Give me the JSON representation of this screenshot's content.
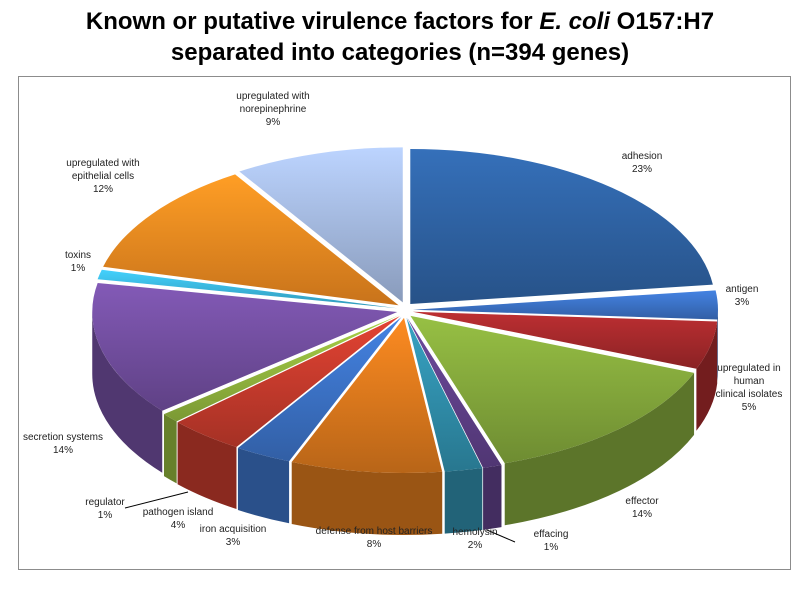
{
  "title": {
    "line1_a": "Known or putative virulence factors for ",
    "line1_em": "E. coli",
    "line1_b": " O157:H7",
    "line2": "separated into categories  (n=394 genes)"
  },
  "chart_data": {
    "type": "pie",
    "title": "Known or putative virulence factors for E. coli O157:H7 separated into categories  (n=394 genes)",
    "three_d": true,
    "exploded": true,
    "start_angle_deg": 0,
    "direction": "clockwise",
    "slices": [
      {
        "name": "adhesion",
        "lines": [
          "adhesion"
        ],
        "pct": "23%",
        "value": 23,
        "color": "#2d5f9e"
      },
      {
        "name": "antigen",
        "lines": [
          "antigen"
        ],
        "pct": "3%",
        "value": 3,
        "color": "#3a6fc0"
      },
      {
        "name": "upregulated in human clinical isolates",
        "lines": [
          "upregulated in",
          "human",
          "clinical isolates"
        ],
        "pct": "5%",
        "value": 5,
        "color": "#a0282a"
      },
      {
        "name": "effector",
        "lines": [
          "effector"
        ],
        "pct": "14%",
        "value": 14,
        "color": "#80a33a"
      },
      {
        "name": "effacing",
        "lines": [
          "effacing"
        ],
        "pct": "1%",
        "value": 1,
        "color": "#5d3f86"
      },
      {
        "name": "hemolysin",
        "lines": [
          "hemolysin"
        ],
        "pct": "2%",
        "value": 2,
        "color": "#2f8aa6"
      },
      {
        "name": "defense from host barriers",
        "lines": [
          "defense from host barriers"
        ],
        "pct": "8%",
        "value": 8,
        "color": "#d6761c"
      },
      {
        "name": "iron acquisition",
        "lines": [
          "iron acquisition"
        ],
        "pct": "3%",
        "value": 3,
        "color": "#3a6fc0"
      },
      {
        "name": "pathogen island",
        "lines": [
          "pathogen island"
        ],
        "pct": "4%",
        "value": 4,
        "color": "#c0392b"
      },
      {
        "name": "regulator",
        "lines": [
          "regulator"
        ],
        "pct": "1%",
        "value": 1,
        "color": "#8fb23c"
      },
      {
        "name": "secretion systems",
        "lines": [
          "secretion systems"
        ],
        "pct": "14%",
        "value": 14,
        "color": "#6f4c9b"
      },
      {
        "name": "toxins",
        "lines": [
          "toxins"
        ],
        "pct": "1%",
        "value": 1,
        "color": "#39b1d6"
      },
      {
        "name": "upregulated with epithelial cells",
        "lines": [
          "upregulated with",
          "epithelial cells"
        ],
        "pct": "12%",
        "value": 12,
        "color": "#e8861f"
      },
      {
        "name": "upregulated with norepinephrine",
        "lines": [
          "upregulated with",
          "norepinephrine"
        ],
        "pct": "9%",
        "value": 9,
        "color": "#9fb4da"
      }
    ]
  }
}
